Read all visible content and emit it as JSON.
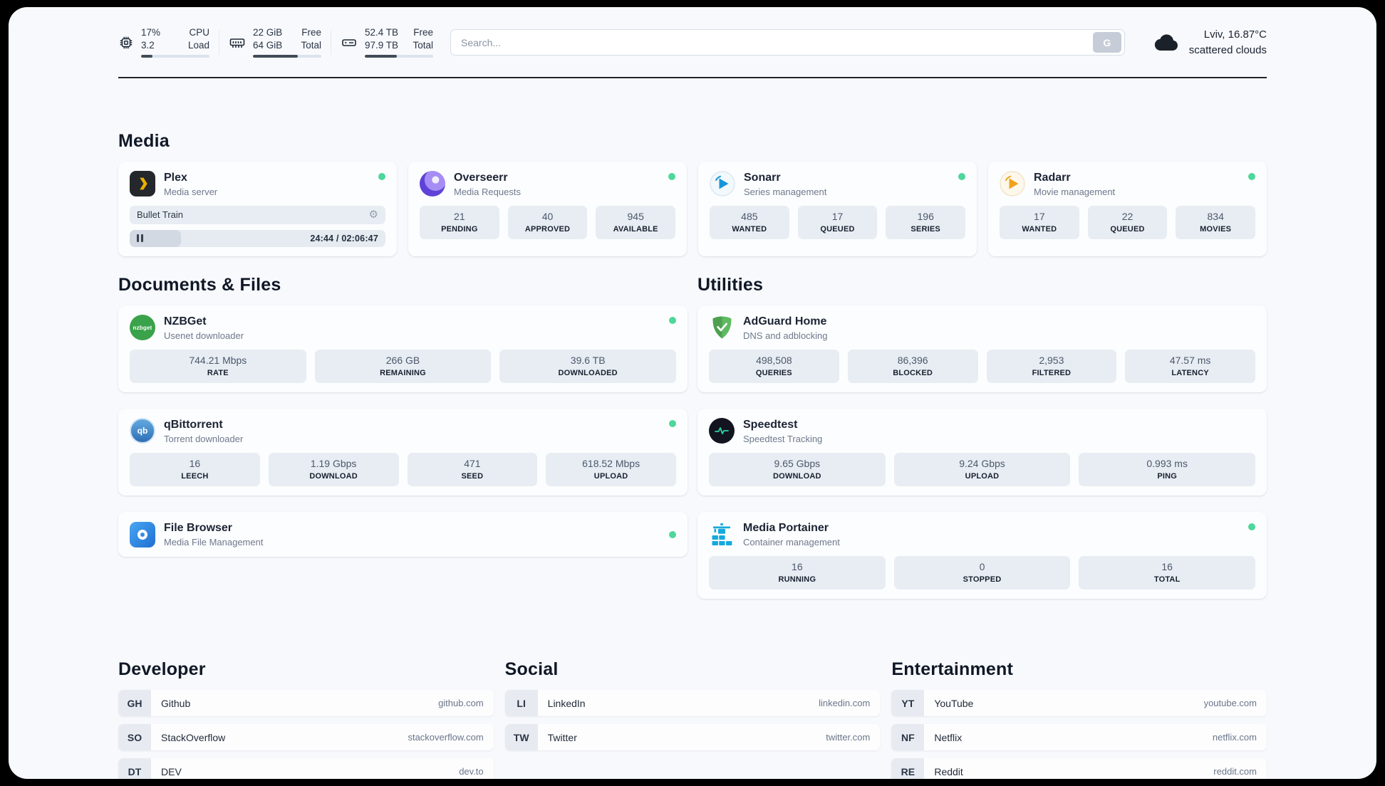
{
  "header": {
    "metrics": [
      {
        "v1": "17%",
        "v2": "3.2",
        "l1": "CPU",
        "l2": "Load",
        "progress": 17
      },
      {
        "v1": "22 GiB",
        "v2": "64 GiB",
        "l1": "Free",
        "l2": "Total",
        "progress": 66
      },
      {
        "v1": "52.4 TB",
        "v2": "97.9 TB",
        "l1": "Free",
        "l2": "Total",
        "progress": 47
      }
    ],
    "search": {
      "placeholder": "Search...",
      "button_label": "G"
    },
    "weather": {
      "location": "Lviv, 16.87°C",
      "condition": "scattered clouds"
    }
  },
  "sections": {
    "media": "Media",
    "documents": "Documents & Files",
    "utilities": "Utilities",
    "developer": "Developer",
    "social": "Social",
    "entertainment": "Entertainment"
  },
  "apps": {
    "plex": {
      "name": "Plex",
      "subtitle": "Media server",
      "now_playing": "Bullet Train",
      "time": "24:44 / 02:06:47",
      "progress": 20
    },
    "overseerr": {
      "name": "Overseerr",
      "subtitle": "Media Requests",
      "stats": [
        {
          "value": "21",
          "label": "PENDING"
        },
        {
          "value": "40",
          "label": "APPROVED"
        },
        {
          "value": "945",
          "label": "AVAILABLE"
        }
      ]
    },
    "sonarr": {
      "name": "Sonarr",
      "subtitle": "Series management",
      "stats": [
        {
          "value": "485",
          "label": "WANTED"
        },
        {
          "value": "17",
          "label": "QUEUED"
        },
        {
          "value": "196",
          "label": "SERIES"
        }
      ]
    },
    "radarr": {
      "name": "Radarr",
      "subtitle": "Movie management",
      "stats": [
        {
          "value": "17",
          "label": "WANTED"
        },
        {
          "value": "22",
          "label": "QUEUED"
        },
        {
          "value": "834",
          "label": "MOVIES"
        }
      ]
    },
    "nzbget": {
      "name": "NZBGet",
      "subtitle": "Usenet downloader",
      "stats": [
        {
          "value": "744.21 Mbps",
          "label": "RATE"
        },
        {
          "value": "266 GB",
          "label": "REMAINING"
        },
        {
          "value": "39.6 TB",
          "label": "DOWNLOADED"
        }
      ]
    },
    "qbittorrent": {
      "name": "qBittorrent",
      "subtitle": "Torrent downloader",
      "stats": [
        {
          "value": "16",
          "label": "LEECH"
        },
        {
          "value": "1.19 Gbps",
          "label": "DOWNLOAD"
        },
        {
          "value": "471",
          "label": "SEED"
        },
        {
          "value": "618.52 Mbps",
          "label": "UPLOAD"
        }
      ]
    },
    "filebrowser": {
      "name": "File Browser",
      "subtitle": "Media File Management"
    },
    "adguard": {
      "name": "AdGuard Home",
      "subtitle": "DNS and adblocking",
      "stats": [
        {
          "value": "498,508",
          "label": "QUERIES"
        },
        {
          "value": "86,396",
          "label": "BLOCKED"
        },
        {
          "value": "2,953",
          "label": "FILTERED"
        },
        {
          "value": "47.57 ms",
          "label": "LATENCY"
        }
      ]
    },
    "speedtest": {
      "name": "Speedtest",
      "subtitle": "Speedtest Tracking",
      "stats": [
        {
          "value": "9.65 Gbps",
          "label": "DOWNLOAD"
        },
        {
          "value": "9.24 Gbps",
          "label": "UPLOAD"
        },
        {
          "value": "0.993 ms",
          "label": "PING"
        }
      ]
    },
    "portainer": {
      "name": "Media Portainer",
      "subtitle": "Container management",
      "stats": [
        {
          "value": "16",
          "label": "RUNNING"
        },
        {
          "value": "0",
          "label": "STOPPED"
        },
        {
          "value": "16",
          "label": "TOTAL"
        }
      ]
    }
  },
  "bookmarks": {
    "developer": [
      {
        "abbr": "GH",
        "name": "Github",
        "url": "github.com"
      },
      {
        "abbr": "SO",
        "name": "StackOverflow",
        "url": "stackoverflow.com"
      },
      {
        "abbr": "DT",
        "name": "DEV",
        "url": "dev.to"
      }
    ],
    "social": [
      {
        "abbr": "LI",
        "name": "LinkedIn",
        "url": "linkedin.com"
      },
      {
        "abbr": "TW",
        "name": "Twitter",
        "url": "twitter.com"
      }
    ],
    "entertainment": [
      {
        "abbr": "YT",
        "name": "YouTube",
        "url": "youtube.com"
      },
      {
        "abbr": "NF",
        "name": "Netflix",
        "url": "netflix.com"
      },
      {
        "abbr": "RE",
        "name": "Reddit",
        "url": "reddit.com"
      }
    ]
  },
  "icons": {
    "gear": "⚙",
    "nzbget_label": "nzbget",
    "qb_label": "qb"
  },
  "colors": {
    "status_online_green": "#4ed79b",
    "progress_fill": "#414b59",
    "tile_bg": "#e8edf3"
  }
}
